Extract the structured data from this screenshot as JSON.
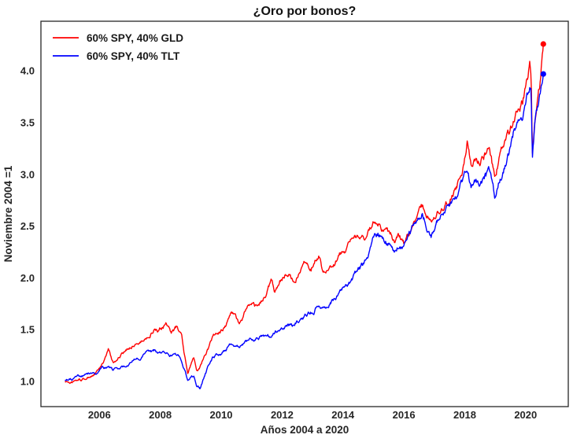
{
  "figure": {
    "background": "#ffffff",
    "text_color": "#262626",
    "spine_color": "#262626"
  },
  "chart_data": {
    "type": "line",
    "title": "¿Oro por bonos?",
    "xlabel": "Años 2004 a 2020",
    "ylabel": "Noviembre 2004 =1",
    "xlim": [
      2004.08,
      2021.4
    ],
    "ylim": [
      0.757,
      4.48
    ],
    "xticks": [
      2006,
      2008,
      2010,
      2012,
      2014,
      2016,
      2018,
      2020
    ],
    "yticks": [
      1.0,
      1.5,
      2.0,
      2.5,
      3.0,
      3.5,
      4.0
    ],
    "grid": false,
    "legend_position": "upper-left",
    "end_markers": true,
    "x": [
      2004.87,
      2005.1,
      2005.3,
      2005.5,
      2005.7,
      2005.9,
      2006.1,
      2006.3,
      2006.45,
      2006.6,
      2006.8,
      2007.0,
      2007.2,
      2007.4,
      2007.6,
      2007.8,
      2007.95,
      2008.2,
      2008.35,
      2008.55,
      2008.7,
      2008.8,
      2008.9,
      2009.0,
      2009.1,
      2009.2,
      2009.3,
      2009.45,
      2009.6,
      2009.75,
      2009.9,
      2010.05,
      2010.2,
      2010.35,
      2010.5,
      2010.6,
      2010.75,
      2010.9,
      2011.05,
      2011.2,
      2011.35,
      2011.5,
      2011.65,
      2011.75,
      2011.9,
      2012.05,
      2012.2,
      2012.35,
      2012.5,
      2012.65,
      2012.8,
      2012.95,
      2013.1,
      2013.25,
      2013.35,
      2013.5,
      2013.65,
      2013.8,
      2013.95,
      2014.1,
      2014.25,
      2014.4,
      2014.55,
      2014.7,
      2014.85,
      2015.0,
      2015.15,
      2015.3,
      2015.45,
      2015.6,
      2015.7,
      2015.85,
      2016.0,
      2016.15,
      2016.3,
      2016.45,
      2016.6,
      2016.75,
      2016.9,
      2017.05,
      2017.2,
      2017.35,
      2017.5,
      2017.65,
      2017.8,
      2017.95,
      2018.08,
      2018.2,
      2018.35,
      2018.5,
      2018.65,
      2018.8,
      2018.9,
      2018.98,
      2019.15,
      2019.3,
      2019.45,
      2019.6,
      2019.75,
      2019.9,
      2020.05,
      2020.13,
      2020.18,
      2020.22,
      2020.3,
      2020.4,
      2020.5,
      2020.58
    ],
    "series": [
      {
        "name": "60% SPY, 40% GLD",
        "color": "#ff0000",
        "end_value": 4.26,
        "values": [
          1.0,
          0.99,
          1.01,
          1.02,
          1.05,
          1.08,
          1.16,
          1.3,
          1.18,
          1.23,
          1.27,
          1.33,
          1.37,
          1.39,
          1.44,
          1.51,
          1.47,
          1.55,
          1.46,
          1.52,
          1.44,
          1.25,
          1.07,
          1.15,
          1.23,
          1.12,
          1.15,
          1.24,
          1.33,
          1.43,
          1.46,
          1.5,
          1.58,
          1.68,
          1.6,
          1.55,
          1.65,
          1.72,
          1.73,
          1.7,
          1.78,
          1.85,
          1.98,
          1.88,
          1.98,
          2.02,
          2.06,
          1.99,
          2.03,
          2.12,
          2.18,
          2.12,
          2.18,
          2.22,
          2.06,
          2.12,
          2.15,
          2.18,
          2.23,
          2.28,
          2.33,
          2.38,
          2.42,
          2.4,
          2.46,
          2.52,
          2.56,
          2.5,
          2.46,
          2.4,
          2.31,
          2.38,
          2.32,
          2.42,
          2.52,
          2.62,
          2.68,
          2.6,
          2.56,
          2.62,
          2.67,
          2.72,
          2.8,
          2.87,
          2.94,
          3.1,
          3.32,
          3.1,
          3.15,
          3.12,
          3.2,
          3.25,
          3.08,
          2.95,
          3.18,
          3.28,
          3.38,
          3.55,
          3.68,
          3.72,
          3.9,
          4.05,
          3.95,
          3.2,
          3.55,
          3.78,
          3.95,
          4.26
        ]
      },
      {
        "name": "60% SPY, 40% TLT",
        "color": "#0000ff",
        "end_value": 3.97,
        "values": [
          1.0,
          1.02,
          1.04,
          1.05,
          1.07,
          1.09,
          1.12,
          1.13,
          1.1,
          1.12,
          1.15,
          1.19,
          1.22,
          1.25,
          1.28,
          1.29,
          1.26,
          1.26,
          1.24,
          1.26,
          1.21,
          1.12,
          1.0,
          1.04,
          1.06,
          0.97,
          0.94,
          1.05,
          1.16,
          1.24,
          1.27,
          1.29,
          1.33,
          1.36,
          1.32,
          1.33,
          1.38,
          1.4,
          1.41,
          1.42,
          1.44,
          1.45,
          1.42,
          1.46,
          1.5,
          1.53,
          1.55,
          1.54,
          1.59,
          1.63,
          1.63,
          1.66,
          1.71,
          1.73,
          1.72,
          1.74,
          1.77,
          1.82,
          1.86,
          1.92,
          1.98,
          2.03,
          2.08,
          2.14,
          2.24,
          2.38,
          2.44,
          2.38,
          2.36,
          2.31,
          2.24,
          2.32,
          2.28,
          2.38,
          2.48,
          2.56,
          2.62,
          2.52,
          2.44,
          2.52,
          2.58,
          2.63,
          2.7,
          2.76,
          2.82,
          2.95,
          3.08,
          2.88,
          2.92,
          2.9,
          2.96,
          3.0,
          2.88,
          2.77,
          2.98,
          3.1,
          3.22,
          3.4,
          3.52,
          3.58,
          3.75,
          3.85,
          3.78,
          3.1,
          3.45,
          3.62,
          3.8,
          3.97
        ]
      }
    ]
  }
}
